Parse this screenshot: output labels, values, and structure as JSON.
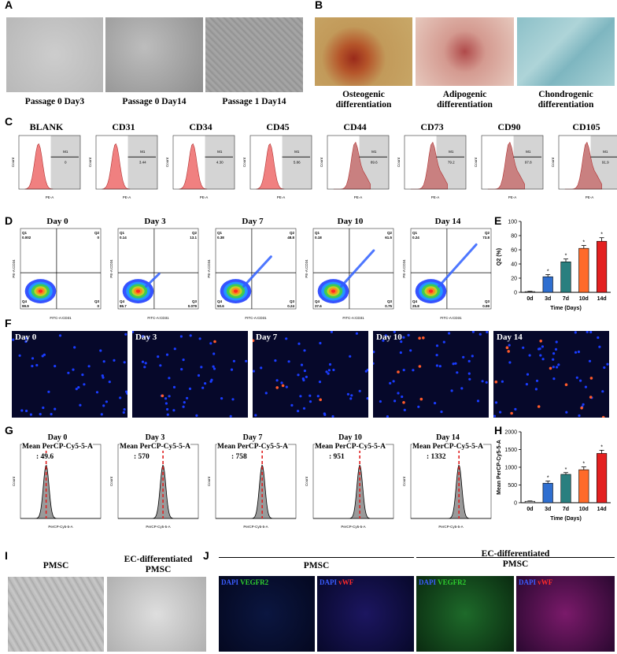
{
  "panel_labels": [
    "A",
    "B",
    "C",
    "D",
    "E",
    "F",
    "G",
    "H",
    "I",
    "J"
  ],
  "panel_a": {
    "captions": [
      "Passage 0 Day3",
      "Passage 0 Day14",
      "Passage 1 Day14"
    ]
  },
  "panel_b": {
    "captions": [
      "Osteogenic\ndifferentiation",
      "Adipogenic\ndifferentiation",
      "Chondrogenic\ndifferentiation"
    ]
  },
  "panel_c": {
    "markers": [
      "BLANK",
      "CD31",
      "CD34",
      "CD45",
      "CD44",
      "CD73",
      "CD90",
      "CD105"
    ],
    "gate_label": "M1",
    "gate_values": [
      "0",
      "3.44",
      "4.30",
      "5.86",
      "89.6",
      "79.2",
      "97.8",
      "91.9"
    ],
    "xlabel": "PE-A",
    "ylabel": "Count"
  },
  "panel_d": {
    "days": [
      "Day 0",
      "Day 3",
      "Day 7",
      "Day 10",
      "Day 14"
    ],
    "xlabel": "FITC-A:CD31",
    "ylabel": "PE-A:CD34",
    "quadrants": [
      {
        "q1": "0.002",
        "q2": "0",
        "q3": "0",
        "q4": "99.9"
      },
      {
        "q1": "0.14",
        "q2": "13.1",
        "q3": "0.079",
        "q4": "86.7"
      },
      {
        "q1": "0.38",
        "q2": "48.8",
        "q3": "0.24",
        "q4": "50.6"
      },
      {
        "q1": "0.18",
        "q2": "61.5",
        "q3": "0.75",
        "q4": "37.6"
      },
      {
        "q1": "0.24",
        "q2": "73.8",
        "q3": "0.99",
        "q4": "25.8"
      }
    ]
  },
  "panel_f": {
    "days": [
      "Day 0",
      "Day 3",
      "Day 7",
      "Day 10",
      "Day 14"
    ]
  },
  "panel_g": {
    "days": [
      "Day 0",
      "Day 3",
      "Day 7",
      "Day 10",
      "Day 14"
    ],
    "mean_label": "Mean PerCP-Cy5-5-A",
    "means": [
      ": 49.6",
      ": 570",
      ": 758",
      ": 951",
      ": 1332"
    ],
    "xlabel": "PerCP-Cy5-5-A",
    "ylabel": "Count"
  },
  "panel_i": {
    "captions": [
      "PMSC",
      "EC-differentiated\nPMSC"
    ]
  },
  "panel_j": {
    "group_labels": [
      "PMSC",
      "EC-differentiated\nPMSC"
    ],
    "stain_dapi": "DAPI",
    "stain_vegfr2": "VEGFR2",
    "stain_vwf": "vWF"
  },
  "colors": {
    "histogram_fill": "#f08080",
    "histogram_fill_pos": "#c98080",
    "gate_bg": "#d4d4d4",
    "bar_colors": [
      "#cccccc",
      "#2f6fd0",
      "#2a7f7f",
      "#ff6a2a",
      "#e32020"
    ],
    "dapi_blue": "#1a3cff",
    "vegfr2_green": "#1fc21f",
    "vwf_red": "#ff2020"
  },
  "chart_data": [
    {
      "type": "bar",
      "panel": "E",
      "categories": [
        "0d",
        "3d",
        "7d",
        "10d",
        "14d"
      ],
      "values": [
        1,
        22,
        43,
        62,
        72
      ],
      "errors": [
        0.5,
        3,
        4,
        4,
        5
      ],
      "significance": [
        "",
        "*",
        "*",
        "*",
        "*"
      ],
      "xlabel": "Time (Days)",
      "ylabel": "Q2 (%)",
      "ylim": [
        0,
        100
      ],
      "yticks": [
        0,
        20,
        40,
        60,
        80,
        100
      ]
    },
    {
      "type": "bar",
      "panel": "H",
      "categories": [
        "0d",
        "3d",
        "7d",
        "10d",
        "14d"
      ],
      "values": [
        40,
        550,
        800,
        930,
        1390
      ],
      "errors": [
        10,
        60,
        50,
        80,
        90
      ],
      "significance": [
        "",
        "*",
        "*",
        "*",
        "*"
      ],
      "xlabel": "Time (Days)",
      "ylabel": "Mean PerCP-Cy5-5-A",
      "ylim": [
        0,
        2000
      ],
      "yticks": [
        0,
        500,
        1000,
        1500,
        2000
      ]
    }
  ]
}
